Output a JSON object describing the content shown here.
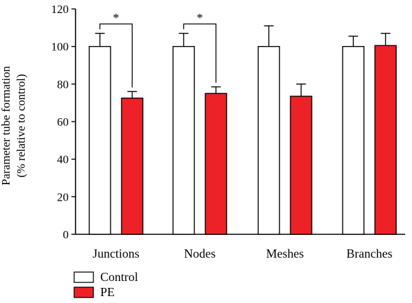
{
  "chart_data": {
    "type": "bar",
    "categories": [
      "Junctions",
      "Nodes",
      "Meshes",
      "Branches"
    ],
    "series": [
      {
        "name": "Control",
        "values": [
          100,
          100,
          100,
          100
        ],
        "errors": [
          7,
          7,
          11,
          5.5
        ]
      },
      {
        "name": "PE",
        "values": [
          72.5,
          75,
          73.5,
          100.5
        ],
        "errors": [
          3.5,
          3.5,
          6.5,
          6.5
        ]
      }
    ],
    "ylabel_line1": "Parameter tube formation",
    "ylabel_line2": "(% relative to control)",
    "ylim": [
      0,
      120
    ],
    "yticks": [
      0,
      20,
      40,
      60,
      80,
      100,
      120
    ],
    "significance": [
      {
        "category": "Junctions",
        "label": "*"
      },
      {
        "category": "Nodes",
        "label": "*"
      }
    ],
    "legend_position": "bottom-left",
    "colors": {
      "Control": "#ffffff",
      "PE": "#ec2227",
      "stroke": "#000000"
    }
  }
}
